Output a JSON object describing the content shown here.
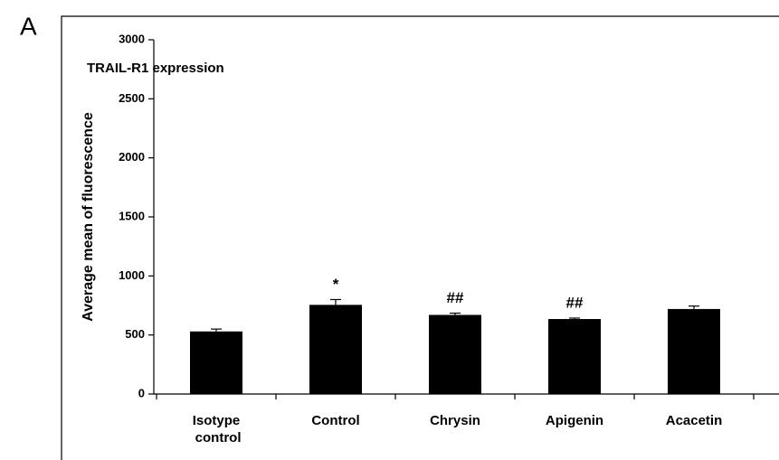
{
  "chart_data": {
    "type": "bar",
    "panel_label": "A",
    "title": "TRAIL-R1 expression",
    "y_label": "Average mean of fluorescence",
    "categories": [
      "Isotype control",
      "Control",
      "Chrysin",
      "Apigenin",
      "Acacetin"
    ],
    "values": [
      530,
      755,
      670,
      635,
      720
    ],
    "errors": [
      20,
      45,
      15,
      8,
      25
    ],
    "color": "#000000",
    "ylim": [
      0,
      3000
    ],
    "yticks": [
      0,
      500,
      1000,
      1500,
      2000,
      2500,
      3000
    ],
    "grid": false,
    "annotations": [
      {
        "text": "*",
        "category": "Control"
      },
      {
        "text": "##",
        "category": "Chrysin"
      },
      {
        "text": "##",
        "category": "Apigenin"
      }
    ]
  }
}
